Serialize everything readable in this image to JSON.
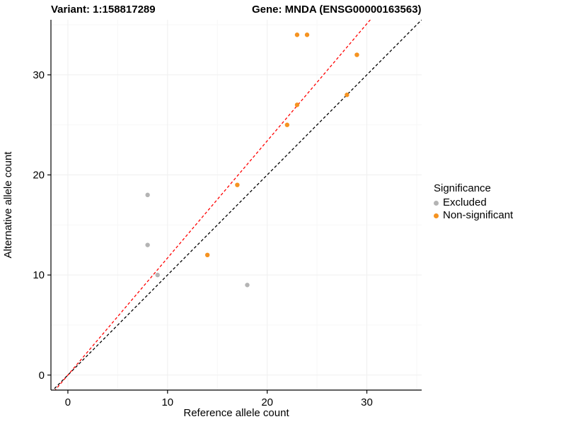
{
  "titles": {
    "variant": "Variant: 1:158817289",
    "gene": "Gene: MNDA (ENSG00000163563)"
  },
  "chart_data": {
    "type": "scatter",
    "title": "Variant: 1:158817289 / Gene: MNDA (ENSG00000163563)",
    "xlabel": "Reference allele count",
    "ylabel": "Alternative allele count",
    "xlim": [
      -1.7,
      35.5
    ],
    "ylim": [
      -1.5,
      35.5
    ],
    "xticks": [
      0,
      10,
      20,
      30
    ],
    "yticks": [
      0,
      10,
      20,
      30
    ],
    "xticks_minor": [
      5,
      15,
      25,
      35
    ],
    "yticks_minor": [
      5,
      15,
      25,
      35
    ],
    "grid": true,
    "series": [
      {
        "name": "Excluded",
        "color": "#b4b4b4",
        "points": [
          [
            8,
            18
          ],
          [
            8,
            13
          ],
          [
            9,
            10
          ],
          [
            18,
            9
          ]
        ]
      },
      {
        "name": "Non-significant",
        "color": "#f59321",
        "points": [
          [
            14,
            12
          ],
          [
            17,
            19
          ],
          [
            22,
            25
          ],
          [
            23,
            27
          ],
          [
            23,
            34
          ],
          [
            24,
            34
          ],
          [
            28,
            28
          ],
          [
            29,
            32
          ]
        ]
      }
    ],
    "lines": [
      {
        "name": "identity",
        "slope": 1.0,
        "intercept": 0,
        "color": "#000000",
        "dash": "4 3"
      },
      {
        "name": "fit",
        "slope": 1.17,
        "intercept": 0,
        "color": "#ff0000",
        "dash": "4 3"
      }
    ],
    "legend": {
      "title": "Significance",
      "position": "right",
      "entries": [
        {
          "label": "Excluded",
          "color": "#b4b4b4"
        },
        {
          "label": "Non-significant",
          "color": "#f59321"
        }
      ]
    }
  }
}
